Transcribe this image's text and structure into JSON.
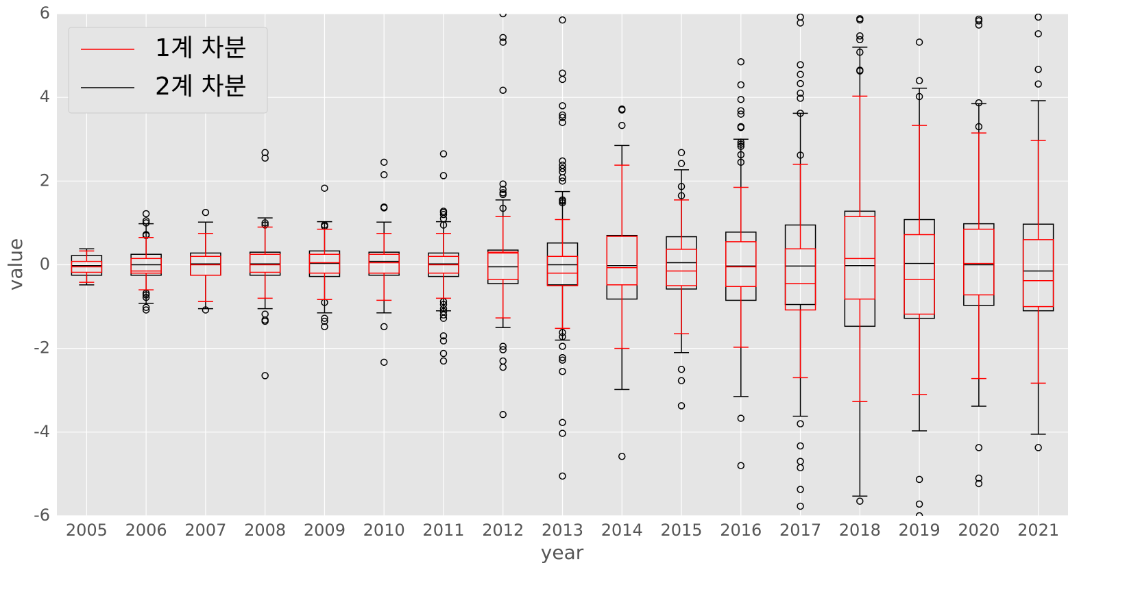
{
  "chart_data": {
    "type": "box",
    "xlabel": "year",
    "ylabel": "value",
    "categories": [
      "2005",
      "2006",
      "2007",
      "2008",
      "2009",
      "2010",
      "2011",
      "2012",
      "2013",
      "2014",
      "2015",
      "2016",
      "2017",
      "2018",
      "2019",
      "2020",
      "2021"
    ],
    "ylim": [
      -6,
      6
    ],
    "yticks": [
      -6,
      -4,
      -2,
      0,
      2,
      4,
      6
    ],
    "grid": true,
    "legend": "upper left",
    "series": [
      {
        "name": "1계 차분",
        "color": "#ff0000",
        "whislo": [
          -0.42,
          -0.6,
          -0.88,
          -0.8,
          -0.83,
          -0.85,
          -0.8,
          -1.27,
          -1.52,
          -2.0,
          -1.65,
          -1.97,
          -2.7,
          -3.27,
          -3.1,
          -2.72,
          -2.83
        ],
        "q1": [
          -0.18,
          -0.2,
          -0.25,
          -0.18,
          -0.2,
          -0.2,
          -0.2,
          -0.35,
          -0.5,
          -0.48,
          -0.5,
          -0.52,
          -1.08,
          -0.82,
          -1.18,
          -0.72,
          -1.0
        ],
        "median": [
          -0.05,
          -0.15,
          0.0,
          0.0,
          0.05,
          0.05,
          0.0,
          0.28,
          -0.2,
          -0.07,
          -0.15,
          -0.05,
          -0.45,
          0.15,
          -0.35,
          0.03,
          -0.38
        ],
        "q3": [
          0.08,
          0.15,
          0.2,
          0.25,
          0.25,
          0.25,
          0.2,
          0.3,
          0.2,
          0.68,
          0.37,
          0.55,
          0.38,
          1.15,
          0.72,
          0.85,
          0.6
        ],
        "whishi": [
          0.33,
          0.65,
          0.75,
          0.9,
          0.85,
          0.75,
          0.75,
          1.15,
          1.08,
          2.38,
          1.55,
          1.85,
          2.4,
          4.03,
          3.33,
          3.15,
          2.97
        ]
      },
      {
        "name": "2계 차분",
        "color": "#000000",
        "whislo": [
          -0.48,
          -0.92,
          -1.05,
          -1.05,
          -1.15,
          -1.15,
          -1.1,
          -1.5,
          -1.8,
          -2.98,
          -2.1,
          -3.15,
          -3.62,
          -5.53,
          -3.97,
          -3.38,
          -4.05
        ],
        "q1": [
          -0.25,
          -0.25,
          -0.25,
          -0.25,
          -0.28,
          -0.25,
          -0.28,
          -0.45,
          -0.48,
          -0.82,
          -0.58,
          -0.85,
          -0.95,
          -1.47,
          -1.28,
          -0.97,
          -1.1
        ],
        "median": [
          -0.02,
          0.0,
          0.02,
          0.02,
          0.03,
          0.08,
          0.02,
          -0.05,
          0.0,
          -0.02,
          0.05,
          -0.03,
          -0.03,
          -0.02,
          0.03,
          0.0,
          -0.15
        ],
        "q3": [
          0.22,
          0.25,
          0.28,
          0.3,
          0.33,
          0.3,
          0.28,
          0.35,
          0.52,
          0.7,
          0.67,
          0.78,
          0.95,
          1.28,
          1.08,
          0.98,
          0.97
        ],
        "whishi": [
          0.38,
          0.98,
          1.02,
          1.12,
          1.03,
          1.02,
          1.03,
          1.55,
          1.75,
          2.85,
          2.27,
          3.0,
          3.62,
          5.2,
          4.22,
          3.85,
          3.92
        ],
        "outliers": [
          [],
          [
            1.22,
            1.05,
            1.0,
            0.72,
            0.7,
            -0.68,
            -0.72,
            -0.78,
            -1.02,
            -1.08
          ],
          [
            1.25,
            -1.08
          ],
          [
            2.68,
            2.55,
            1.0,
            0.95,
            -1.18,
            -1.32,
            -1.35,
            -2.65
          ],
          [
            1.83,
            0.95,
            0.92,
            -0.9,
            -1.28,
            -1.35,
            -1.48
          ],
          [
            2.45,
            2.15,
            1.38,
            1.36,
            -1.48,
            -2.33
          ],
          [
            2.65,
            2.13,
            1.28,
            1.25,
            1.2,
            1.1,
            0.95,
            -0.88,
            -0.95,
            -1.05,
            -1.12,
            -1.2,
            -1.28,
            -1.7,
            -1.82,
            -2.12,
            -2.3
          ],
          [
            6.0,
            5.43,
            5.32,
            4.17,
            1.93,
            1.8,
            1.72,
            1.68,
            1.35,
            -1.95,
            -2.03,
            -2.3,
            -2.45,
            -3.58
          ],
          [
            5.85,
            4.58,
            4.43,
            3.8,
            3.58,
            3.52,
            3.4,
            2.48,
            2.38,
            2.3,
            2.22,
            2.08,
            2.0,
            1.55,
            1.52,
            1.48,
            -1.62,
            -1.72,
            -1.95,
            -2.22,
            -2.28,
            -2.55,
            -3.77,
            -4.03,
            -5.05
          ],
          [
            3.72,
            3.7,
            3.33,
            -4.58
          ],
          [
            2.68,
            2.42,
            1.87,
            1.65,
            -2.5,
            -2.77,
            -3.37
          ],
          [
            4.85,
            4.3,
            3.95,
            3.68,
            3.6,
            3.3,
            3.28,
            2.93,
            2.88,
            2.83,
            2.63,
            2.45,
            -3.67,
            -4.8
          ],
          [
            5.92,
            5.78,
            4.78,
            4.55,
            4.33,
            4.1,
            3.98,
            3.62,
            2.62,
            -3.8,
            -4.33,
            -4.7,
            -4.85,
            -5.37,
            -5.77
          ],
          [
            5.88,
            5.85,
            5.47,
            5.38,
            5.08,
            4.65,
            4.63,
            -5.65
          ],
          [
            5.32,
            4.4,
            4.02,
            -5.13,
            -5.72,
            -6.0
          ],
          [
            5.87,
            5.83,
            5.73,
            3.87,
            3.3,
            -4.37,
            -5.1,
            -5.23
          ],
          [
            5.92,
            5.52,
            4.67,
            4.32,
            -4.37
          ]
        ]
      }
    ]
  }
}
